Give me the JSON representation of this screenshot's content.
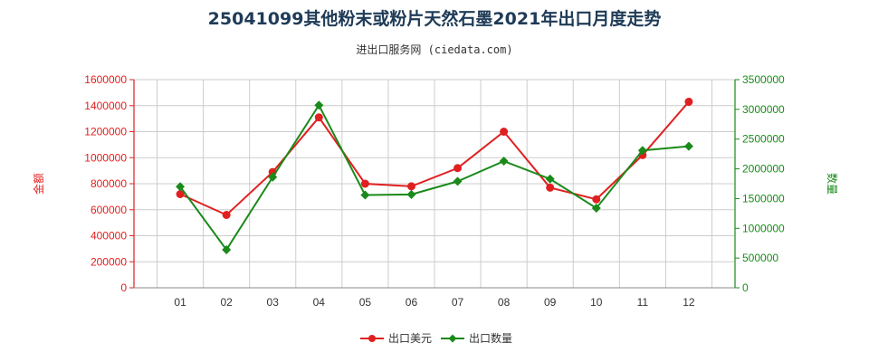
{
  "chart_data": {
    "type": "line",
    "title": "25041099其他粉末或粉片天然石墨2021年出口月度走势",
    "subtitle": "进出口服务网 (ciedata.com)",
    "categories": [
      "01",
      "02",
      "03",
      "04",
      "05",
      "06",
      "07",
      "08",
      "09",
      "10",
      "11",
      "12"
    ],
    "left_axis": {
      "label": "金额",
      "ylim": [
        0,
        1600000
      ],
      "ticks": [
        "0",
        "200000",
        "400000",
        "600000",
        "800000",
        "1000000",
        "1200000",
        "1400000",
        "1600000"
      ],
      "color": "#e02020"
    },
    "right_axis": {
      "label": "数量",
      "ylim": [
        0,
        3500000
      ],
      "ticks": [
        "0",
        "500000",
        "1000000",
        "1500000",
        "2000000",
        "2500000",
        "3000000",
        "3500000"
      ],
      "color": "#1a8a1a"
    },
    "series": [
      {
        "name": "出口美元",
        "axis": "left",
        "color": "#e02020",
        "values": [
          720000,
          560000,
          890000,
          1310000,
          800000,
          780000,
          920000,
          1200000,
          770000,
          680000,
          1020000,
          1430000
        ]
      },
      {
        "name": "出口数量",
        "axis": "right",
        "color": "#1a8a1a",
        "values": [
          1700000,
          640000,
          1860000,
          3070000,
          1560000,
          1570000,
          1790000,
          2130000,
          1830000,
          1340000,
          2310000,
          2380000
        ]
      }
    ],
    "grid": true,
    "legend_position": "bottom-center"
  }
}
